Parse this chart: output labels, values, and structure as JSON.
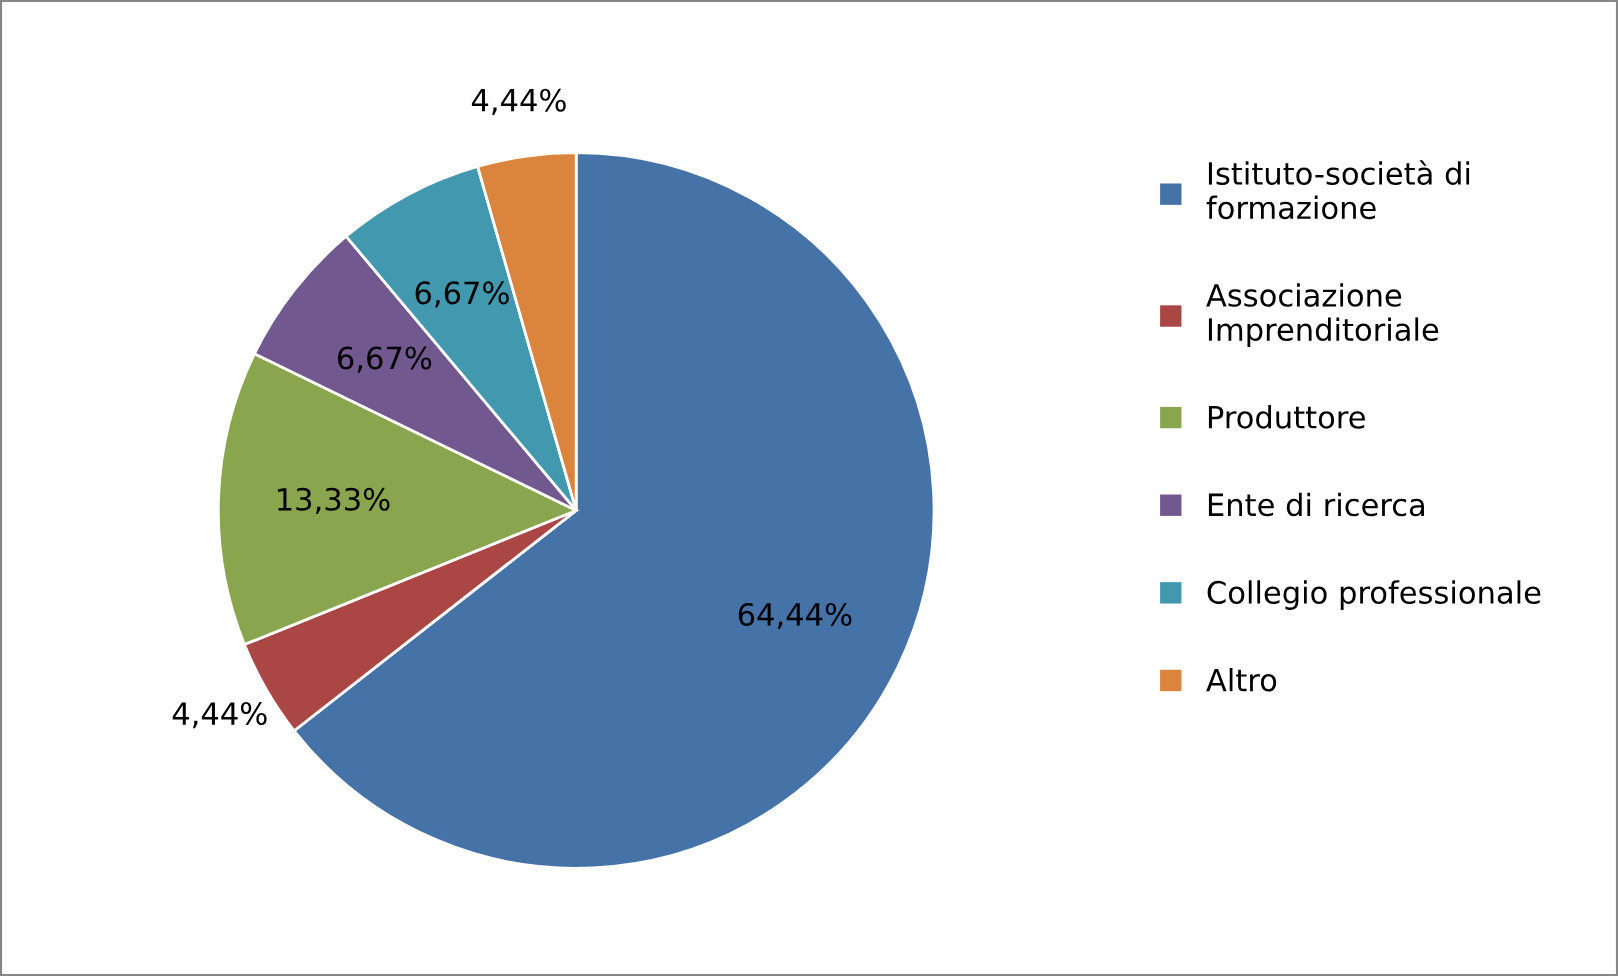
{
  "chart_data": {
    "type": "pie",
    "categories": [
      "Istituto-società di formazione",
      "Associazione Imprenditoriale",
      "Produttore",
      "Ente di ricerca",
      "Collegio professionale",
      "Altro"
    ],
    "values": [
      64.44,
      4.44,
      13.33,
      6.67,
      6.67,
      4.44
    ],
    "value_labels": [
      "64,44%",
      "4,44%",
      "13,33%",
      "6,67%",
      "6,67%",
      "4,44%"
    ],
    "colors": [
      "#4572a7",
      "#aa4643",
      "#89a54e",
      "#71588f",
      "#4198af",
      "#db843d"
    ],
    "legend": "right"
  }
}
